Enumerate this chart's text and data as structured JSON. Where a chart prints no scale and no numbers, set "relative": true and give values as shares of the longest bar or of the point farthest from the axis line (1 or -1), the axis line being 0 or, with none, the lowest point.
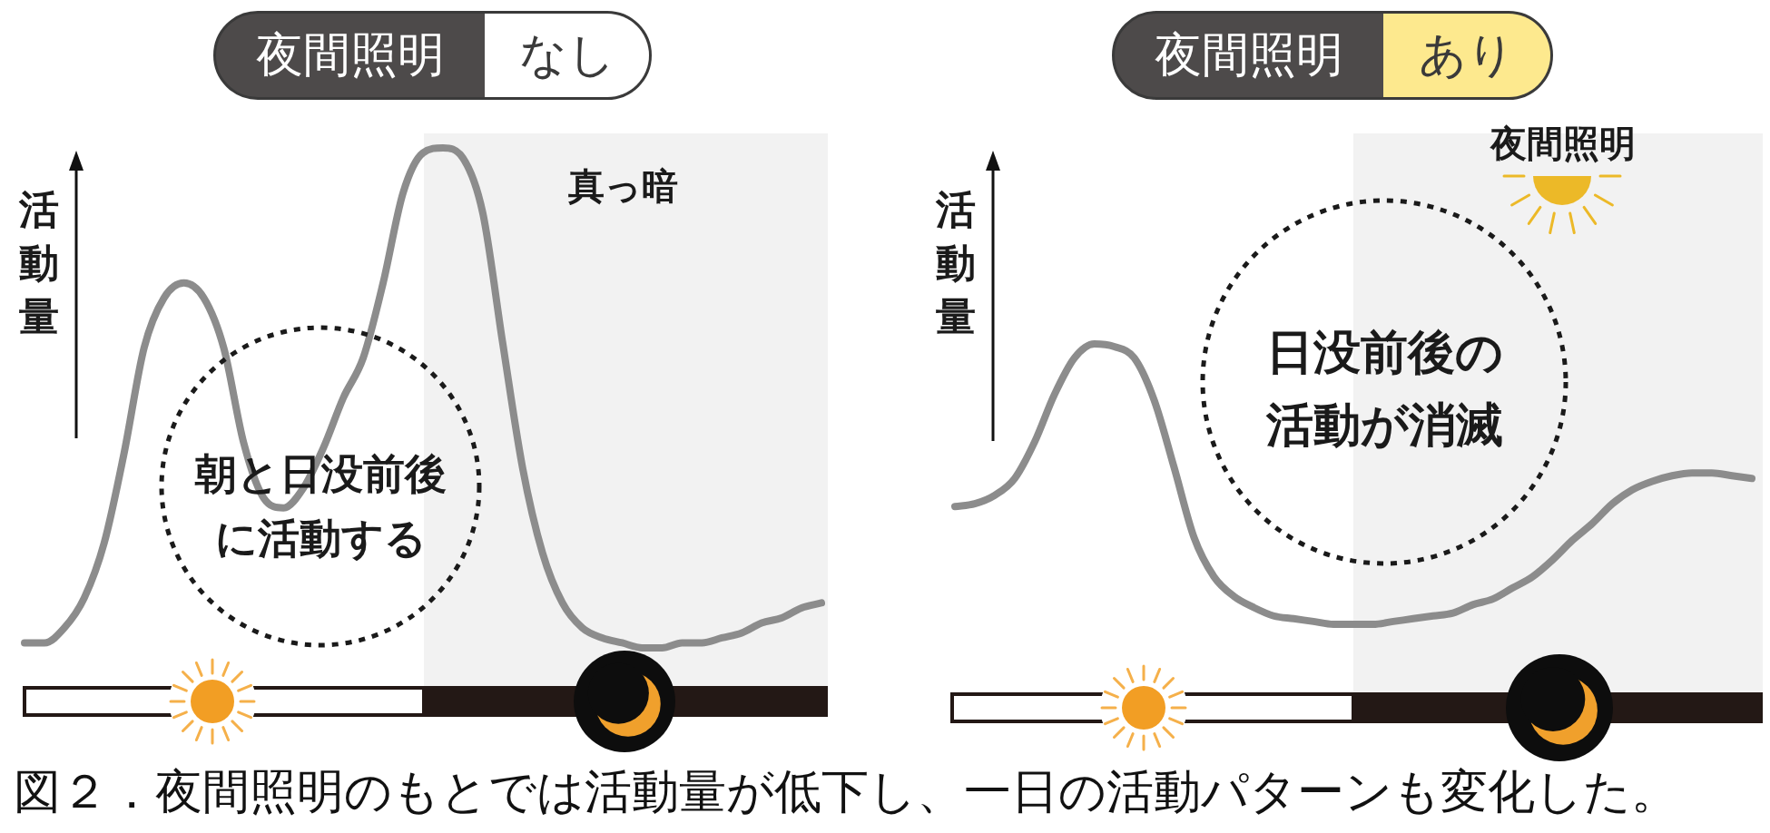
{
  "chart_data": [
    {
      "type": "line",
      "title": "夜間照明",
      "subtitle": "なし",
      "ylabel": "活動量",
      "relative": true,
      "marker": "none",
      "line_style": "solid",
      "color": "#8c8c8c",
      "categories": [
        null,
        null,
        null,
        null,
        null,
        null,
        null,
        null,
        null,
        null,
        null,
        null,
        null,
        null,
        null,
        null,
        null,
        null,
        null,
        null,
        null,
        null,
        null,
        null,
        null,
        null,
        null,
        null,
        null,
        null,
        null,
        null,
        null,
        null,
        null,
        null,
        null,
        null,
        null,
        null,
        null
      ],
      "values": [
        0.01,
        0.01,
        0.04,
        0.1,
        0.21,
        0.39,
        0.6,
        0.7,
        0.73,
        0.7,
        0.6,
        0.41,
        0.3,
        0.28,
        0.32,
        0.4,
        0.5,
        0.58,
        0.73,
        0.91,
        0.99,
        1.0,
        0.98,
        0.87,
        0.61,
        0.36,
        0.19,
        0.09,
        0.04,
        0.02,
        0.01,
        0.0,
        0.0,
        0.01,
        0.01,
        0.02,
        0.03,
        0.05,
        0.06,
        0.08,
        0.09
      ],
      "annotations": [
        "真っ暗",
        "朝と日没前後に活動する",
        "図２．夜間照明のもとでは活動量が低下し、一日の活動パターンも変化した。"
      ]
    },
    {
      "type": "line",
      "title": "夜間照明",
      "subtitle": "あり",
      "ylabel": "活動量",
      "relative": true,
      "marker": "none",
      "line_style": "solid",
      "color": "#8c8c8c",
      "categories": [
        null,
        null,
        null,
        null,
        null,
        null,
        null,
        null,
        null,
        null,
        null,
        null,
        null,
        null,
        null,
        null,
        null,
        null,
        null,
        null,
        null,
        null,
        null,
        null,
        null,
        null,
        null,
        null,
        null,
        null,
        null,
        null,
        null,
        null,
        null,
        null,
        null,
        null,
        null,
        null,
        null
      ],
      "values": [
        0.42,
        0.43,
        0.46,
        0.52,
        0.65,
        0.82,
        0.95,
        1.0,
        0.99,
        0.95,
        0.8,
        0.56,
        0.31,
        0.17,
        0.1,
        0.06,
        0.03,
        0.02,
        0.01,
        0.0,
        0.0,
        0.0,
        0.01,
        0.02,
        0.03,
        0.04,
        0.07,
        0.09,
        0.13,
        0.17,
        0.23,
        0.3,
        0.36,
        0.43,
        0.48,
        0.51,
        0.53,
        0.54,
        0.54,
        0.53,
        0.52
      ],
      "annotations": [
        "夜間照明",
        "日没前後の活動が消滅"
      ]
    }
  ]
}
